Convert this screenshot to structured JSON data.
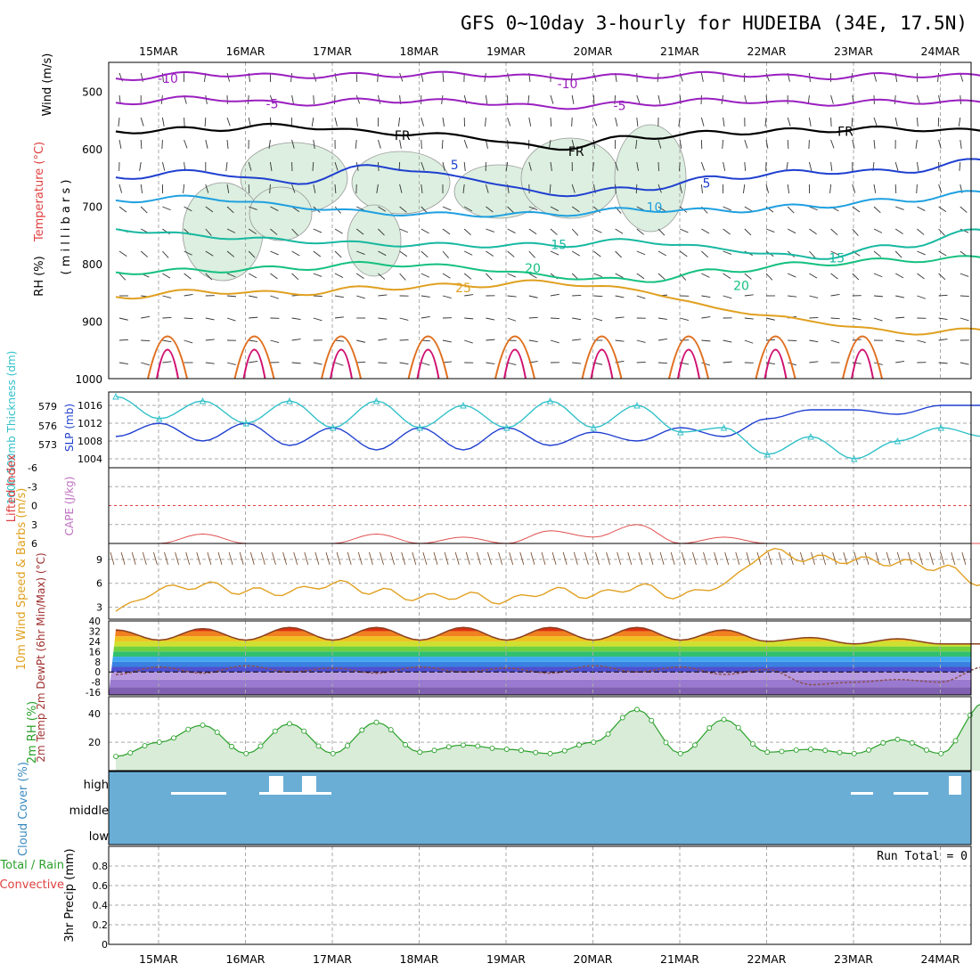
{
  "title": "GFS 0~10day 3-hourly for HUDEIBA (34E, 17.5N)",
  "dates": [
    "15MAR",
    "16MAR",
    "17MAR",
    "18MAR",
    "19MAR",
    "20MAR",
    "21MAR",
    "22MAR",
    "23MAR",
    "24MAR"
  ],
  "colors": {
    "purple": "#9a1fc0",
    "black": "#000000",
    "blue": "#1f3fd0",
    "lightblue": "#1fa0e0",
    "teal": "#17b8a0",
    "green": "#14c080",
    "orange": "#e0a020",
    "darkorange": "#e07020",
    "magenta": "#d01070",
    "cyan": "#30c0c8",
    "slpblue": "#1f3fd0",
    "gray": "#9a9a9a",
    "cloudbg": "#6aaed6",
    "rhgreen": "#2aa02a"
  },
  "chart_data": [
    {
      "id": "upper",
      "type": "line",
      "ylabel_parts": [
        "Wind (m/s)",
        "Temperature (°C)",
        "RH (%)",
        "( m i l l i b a r s )"
      ],
      "ylim": [
        1000,
        450
      ],
      "yticks": [
        500,
        600,
        700,
        800,
        900,
        1000
      ],
      "series": [
        {
          "name": "-10",
          "color": "purple",
          "x": [
            0,
            1,
            2,
            3,
            4,
            5,
            6,
            7,
            8,
            9,
            10
          ],
          "y": [
            478,
            470,
            474,
            472,
            470,
            476,
            474,
            470,
            476,
            472,
            474
          ],
          "labels": [
            {
              "text": "-10",
              "x": 0.6,
              "y": 478
            },
            {
              "text": "-10",
              "x": 5.2,
              "y": 487
            }
          ]
        },
        {
          "name": "-5",
          "color": "purple",
          "x": [
            0,
            1,
            2,
            3,
            4,
            5,
            6,
            7,
            8,
            9,
            10
          ],
          "y": [
            520,
            512,
            522,
            516,
            518,
            528,
            522,
            516,
            522,
            518,
            520
          ],
          "labels": [
            {
              "text": "-5",
              "x": 1.8,
              "y": 522
            },
            {
              "text": "-5",
              "x": 5.8,
              "y": 525
            }
          ]
        },
        {
          "name": "FR",
          "color": "black",
          "x": [
            0,
            1,
            2,
            3,
            4,
            5,
            6,
            7,
            8,
            9,
            10
          ],
          "y": [
            570,
            566,
            560,
            572,
            578,
            600,
            580,
            572,
            568,
            565,
            570
          ],
          "labels": [
            {
              "text": "FR",
              "x": 3.3,
              "y": 577
            },
            {
              "text": "FR",
              "x": 5.3,
              "y": 605
            },
            {
              "text": "FR",
              "x": 8.4,
              "y": 570
            }
          ]
        },
        {
          "name": "5",
          "color": "blue",
          "x": [
            0,
            1,
            2,
            3,
            4,
            5,
            6,
            7,
            8,
            9,
            10
          ],
          "y": [
            650,
            640,
            660,
            630,
            650,
            680,
            670,
            650,
            640,
            640,
            620
          ],
          "labels": [
            {
              "text": "5",
              "x": 3.9,
              "y": 628
            },
            {
              "text": "5",
              "x": 6.8,
              "y": 660
            }
          ]
        },
        {
          "name": "10",
          "color": "lightblue",
          "x": [
            0,
            1,
            2,
            3,
            4,
            5,
            6,
            7,
            8,
            9,
            10
          ],
          "y": [
            690,
            685,
            700,
            712,
            715,
            714,
            706,
            708,
            700,
            690,
            676
          ],
          "labels": [
            {
              "text": "10",
              "x": 6.2,
              "y": 702
            }
          ]
        },
        {
          "name": "15",
          "color": "teal",
          "x": [
            0,
            1,
            2,
            3,
            4,
            5,
            6,
            7,
            8,
            9,
            10
          ],
          "y": [
            740,
            752,
            760,
            766,
            768,
            768,
            760,
            775,
            790,
            770,
            742
          ],
          "labels": [
            {
              "text": "15",
              "x": 5.1,
              "y": 767
            },
            {
              "text": "15",
              "x": 8.3,
              "y": 790
            }
          ]
        },
        {
          "name": "20",
          "color": "green",
          "x": [
            0,
            1,
            2,
            3,
            4,
            5,
            6,
            7,
            8,
            9,
            10
          ],
          "y": [
            815,
            812,
            808,
            800,
            806,
            822,
            830,
            812,
            800,
            794,
            790
          ],
          "labels": [
            {
              "text": "20",
              "x": 4.8,
              "y": 808
            },
            {
              "text": "20",
              "x": 7.2,
              "y": 838
            }
          ]
        },
        {
          "name": "25",
          "color": "orange",
          "x": [
            0,
            1,
            2,
            3,
            4,
            5,
            6,
            7,
            8,
            9,
            10
          ],
          "y": [
            858,
            848,
            852,
            842,
            838,
            832,
            846,
            880,
            900,
            920,
            916
          ],
          "labels": [
            {
              "text": "25",
              "x": 4.0,
              "y": 842
            }
          ]
        }
      ]
    },
    {
      "id": "slp_thk",
      "type": "line",
      "ylabel_left": "1000-500mb Thickness (dm)",
      "ylabel_right": "SLP (mb)",
      "yticks_left": [
        573,
        576,
        579
      ],
      "yticks_right": [
        1004,
        1008,
        1012,
        1016
      ],
      "ylim_right": [
        1002,
        1019
      ],
      "x": [
        0,
        0.5,
        1,
        1.5,
        2,
        2.5,
        3,
        3.5,
        4,
        4.5,
        5,
        5.5,
        6,
        6.5,
        7,
        7.5,
        8,
        8.5,
        9,
        9.5,
        10
      ],
      "series": [
        {
          "name": "SLP",
          "color": "slpblue",
          "values": [
            1009,
            1012,
            1008,
            1012,
            1007,
            1011,
            1006,
            1011,
            1006,
            1011,
            1007,
            1010,
            1008,
            1011,
            1009,
            1013,
            1015,
            1015,
            1014,
            1016,
            1016
          ]
        },
        {
          "name": "Thickness",
          "color": "cyan",
          "values": [
            1018,
            1013,
            1017,
            1012,
            1017,
            1011,
            1017,
            1011,
            1016,
            1011,
            1017,
            1011,
            1016,
            1010,
            1011,
            1005,
            1009,
            1004,
            1008,
            1011,
            1009
          ]
        }
      ]
    },
    {
      "id": "li_cape",
      "type": "line",
      "ylabel_left": "Lifted Index",
      "ylabel_right": "CAPE (J/kg)",
      "yticks": [
        "-6",
        "-3",
        "0",
        "3",
        "6"
      ],
      "ylim": [
        -6,
        6
      ],
      "x": [
        0,
        0.5,
        1,
        1.5,
        2,
        2.5,
        3,
        3.5,
        4,
        4.5,
        5,
        5.5,
        6,
        6.5,
        7,
        7.5,
        8,
        8.5,
        9,
        9.5,
        10
      ],
      "series": [
        {
          "name": "CAPE",
          "color": "#e05050",
          "values": [
            6,
            6,
            4.5,
            6,
            6,
            6,
            4.5,
            6,
            5,
            6,
            4,
            5,
            3,
            6,
            5,
            6,
            6,
            6,
            6,
            6,
            6
          ]
        }
      ]
    },
    {
      "id": "wind10",
      "type": "line",
      "ylabel": "10m Wind Speed & Barbs (m/s)",
      "yticks": [
        3,
        6,
        9
      ],
      "ylim": [
        1.5,
        11
      ],
      "x": [
        0,
        0.5,
        1,
        1.5,
        2,
        2.5,
        3,
        3.5,
        4,
        4.5,
        5,
        5.5,
        6,
        6.5,
        7,
        7.5,
        8,
        8.5,
        9,
        9.5,
        10
      ],
      "series": [
        {
          "name": "Speed",
          "color": "orange",
          "values": [
            2.5,
            5.2,
            5.8,
            5.0,
            4.9,
            6.0,
            5.0,
            4.2,
            4.5,
            3.8,
            5.1,
            4.5,
            5.6,
            4.4,
            5.9,
            10.0,
            9.1,
            8.9,
            8.6,
            8.0,
            6.0
          ]
        }
      ]
    },
    {
      "id": "temp2m",
      "type": "area",
      "ylabel": "2m Temp 2m DewPt (6hr Min/Max) (°C)",
      "yticks": [
        "-16",
        "-8",
        "0",
        "8",
        "16",
        "24",
        "32",
        "40"
      ],
      "ylim": [
        -18,
        40
      ],
      "x": [
        0,
        0.5,
        1,
        1.5,
        2,
        2.5,
        3,
        3.5,
        4,
        4.5,
        5,
        5.5,
        6,
        6.5,
        7,
        7.5,
        8,
        8.5,
        9,
        9.5,
        10
      ],
      "series": [
        {
          "name": "2m Temp",
          "color": "#8a4020",
          "values": [
            33,
            25,
            34,
            25,
            35,
            25,
            35,
            25,
            35,
            25,
            35,
            25,
            35,
            25,
            33,
            24,
            27,
            22,
            26,
            22,
            22
          ]
        },
        {
          "name": "2m DewPt",
          "color": "#8a5050",
          "values": [
            -2,
            4,
            -1,
            5,
            0,
            3,
            -1,
            4,
            0,
            3,
            -1,
            5,
            0,
            4,
            -2,
            2,
            -10,
            -8,
            -6,
            -8,
            4
          ]
        }
      ]
    },
    {
      "id": "rh2m",
      "type": "area",
      "ylabel": "2m RH (%)",
      "yticks": [
        20,
        40
      ],
      "ylim": [
        0,
        52
      ],
      "x": [
        0,
        0.5,
        1,
        1.5,
        2,
        2.5,
        3,
        3.5,
        4,
        4.5,
        5,
        5.5,
        6,
        6.5,
        7,
        7.5,
        8,
        8.5,
        9,
        9.5,
        10
      ],
      "series": [
        {
          "name": "RH",
          "color": "rhgreen",
          "values": [
            10,
            20,
            32,
            12,
            33,
            12,
            34,
            13,
            18,
            15,
            12,
            20,
            43,
            12,
            36,
            13,
            15,
            12,
            22,
            12,
            48
          ]
        }
      ]
    },
    {
      "id": "cloud",
      "type": "bar",
      "ylabel": "Cloud Cover (%)",
      "levels": [
        "high",
        "middle",
        "low"
      ]
    },
    {
      "id": "precip",
      "type": "bar",
      "ylabel_left": "Total / Rain Convective",
      "ylabel_right": "3hr Precip (mm)",
      "yticks": [
        "0",
        "0.2",
        "0.4",
        "0.6",
        "0.8"
      ],
      "ylim": [
        0,
        1
      ],
      "annotation": "Run Total = 0"
    }
  ]
}
